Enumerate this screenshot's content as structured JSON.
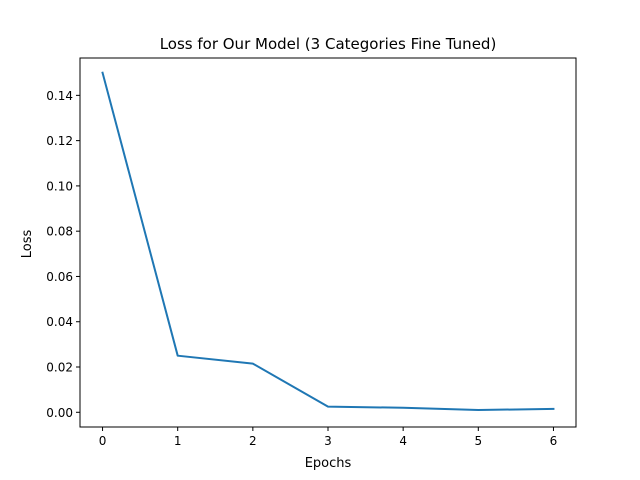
{
  "colors": {
    "series": "#1f77b4",
    "axes": "#000000",
    "background": "#ffffff"
  },
  "chart_data": {
    "type": "line",
    "title": "Loss for Our Model (3 Categories Fine Tuned)",
    "xlabel": "Epochs",
    "ylabel": "Loss",
    "grid": false,
    "xlim": [
      -0.3,
      6.3
    ],
    "ylim": [
      -0.0065,
      0.1565
    ],
    "xticks": [
      0,
      1,
      2,
      3,
      4,
      5,
      6
    ],
    "xtick_labels": [
      "0",
      "1",
      "2",
      "3",
      "4",
      "5",
      "6"
    ],
    "yticks": [
      0.0,
      0.02,
      0.04,
      0.06,
      0.08,
      0.1,
      0.12,
      0.14
    ],
    "ytick_labels": [
      "0.00",
      "0.02",
      "0.04",
      "0.06",
      "0.08",
      "0.10",
      "0.12",
      "0.14"
    ],
    "series": [
      {
        "name": "Loss",
        "x": [
          0,
          1,
          2,
          3,
          4,
          5,
          6
        ],
        "values": [
          0.15,
          0.025,
          0.0215,
          0.0025,
          0.002,
          0.001,
          0.0015
        ]
      }
    ]
  }
}
